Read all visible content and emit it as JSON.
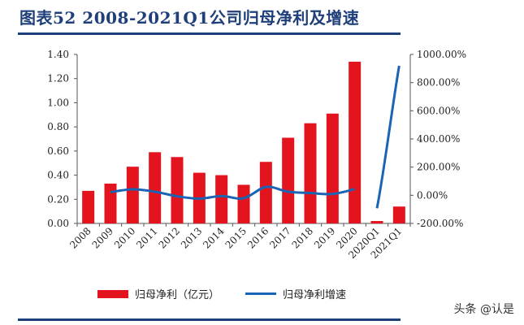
{
  "title": "图表52  2008-2021Q1公司归母净利及增速",
  "watermark": "头条 @认是",
  "chart_data": {
    "type": "bar+line",
    "title": "图表52  2008-2021Q1公司归母净利及增速",
    "categories": [
      "2008",
      "2009",
      "2010",
      "2011",
      "2012",
      "2013",
      "2014",
      "2015",
      "2016",
      "2017",
      "2018",
      "2019",
      "2020",
      "2020Q1",
      "2021Q1"
    ],
    "series": [
      {
        "name": "归母净利（亿元）",
        "type": "bar",
        "axis": "left",
        "color": "#e3141d",
        "values": [
          0.27,
          0.33,
          0.47,
          0.59,
          0.55,
          0.42,
          0.4,
          0.32,
          0.51,
          0.71,
          0.83,
          0.91,
          1.34,
          0.02,
          0.14
        ]
      },
      {
        "name": "归母净利增速",
        "type": "line",
        "axis": "right",
        "color": "#1a64b5",
        "unit": "%",
        "values": [
          null,
          22,
          42,
          25,
          -7,
          -24,
          -5,
          -21,
          59,
          25,
          16,
          9,
          44,
          -92,
          919
        ]
      }
    ],
    "left_axis": {
      "ylim": [
        0,
        1.4
      ],
      "ticks": [
        "0.00",
        "0.20",
        "0.40",
        "0.60",
        "0.80",
        "1.00",
        "1.20",
        "1.40"
      ]
    },
    "right_axis": {
      "ylim": [
        -200,
        1000
      ],
      "ticks": [
        "-200.00%",
        "0.00%",
        "200.00%",
        "400.00%",
        "600.00%",
        "800.00%",
        "1000.00%"
      ]
    },
    "legend_position": "bottom",
    "grid": false
  }
}
